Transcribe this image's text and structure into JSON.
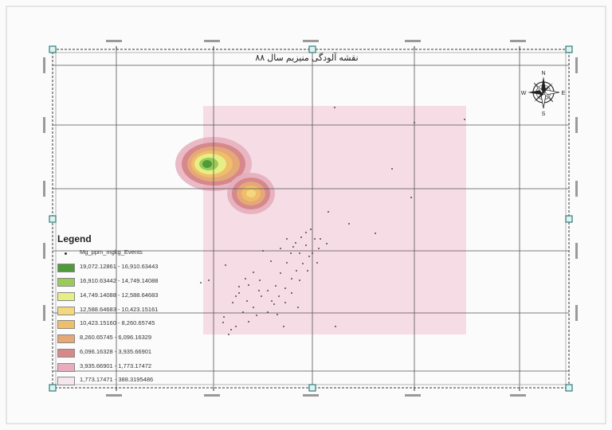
{
  "map": {
    "title": "نقشه آلودگی منیزیم سال ۸۸",
    "compass": {
      "labels": [
        "N",
        "E",
        "S",
        "W"
      ]
    },
    "colors": {
      "background_tint": "#f6d9e2",
      "frame": "#444444",
      "grid": "#333333",
      "handle": "#2e7f7a"
    }
  },
  "legend": {
    "title": "Legend",
    "points_label": "Mg_ppm_mgkg_Events",
    "classes": [
      {
        "label": "19,072.12861 - 16,910.63443",
        "color": "#4f9a3a"
      },
      {
        "label": "16,910.63442 - 14,749.14088",
        "color": "#9acb5a"
      },
      {
        "label": "14,749.14088 - 12,588.64683",
        "color": "#e6ef86"
      },
      {
        "label": "12,588.64683 - 10,423.15161",
        "color": "#f4d77e"
      },
      {
        "label": "10,423.15160 - 8,260.65745",
        "color": "#f0bd6a"
      },
      {
        "label": "8,260.65745 - 6,096.16329",
        "color": "#e5a878"
      },
      {
        "label": "6,096.16328 - 3,935.66901",
        "color": "#d6888a"
      },
      {
        "label": "3,935.66901 - 1,773.17472",
        "color": "#e6aebd"
      },
      {
        "label": "1,773.17471 - 388.3195486",
        "color": "#f6e7ec"
      }
    ]
  }
}
